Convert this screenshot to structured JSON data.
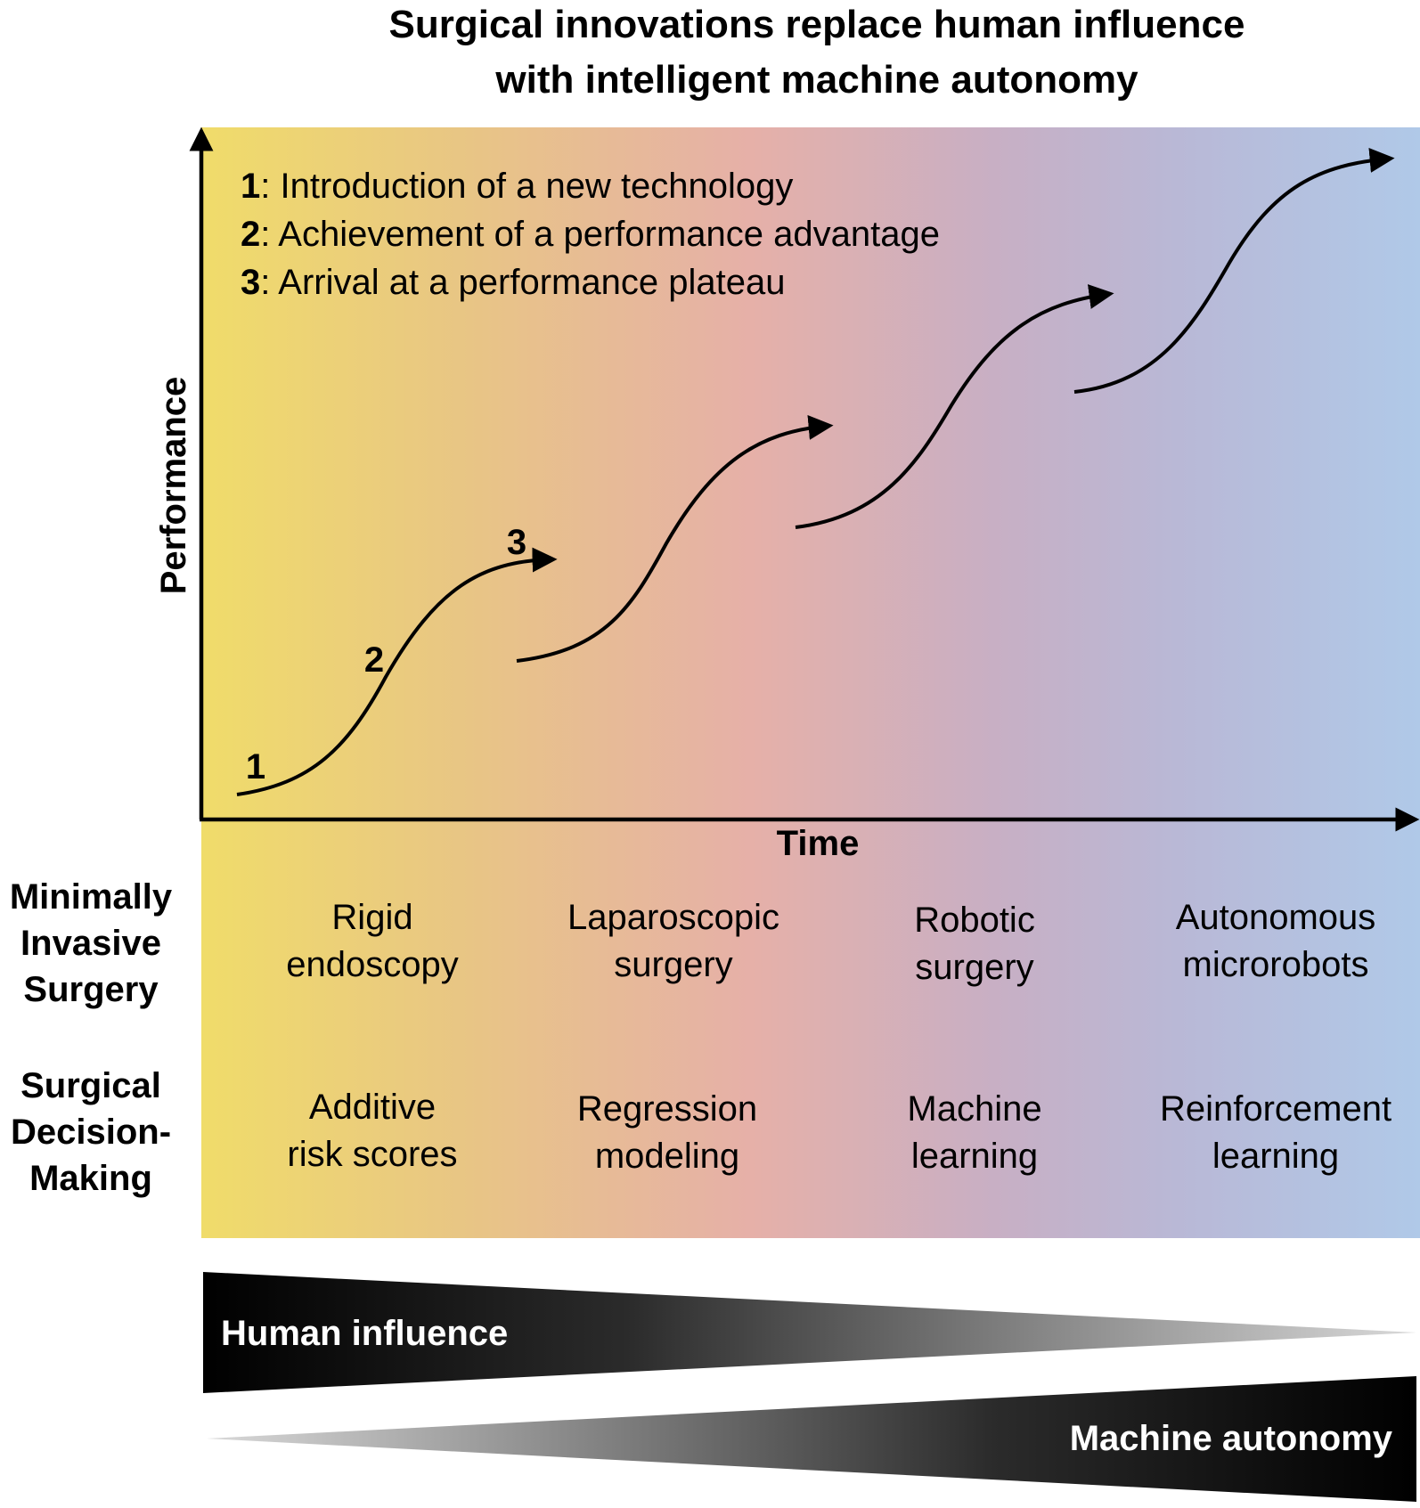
{
  "title": {
    "line1": "Surgical innovations replace human influence",
    "line2": "with intelligent machine autonomy"
  },
  "axes": {
    "y_label": "Performance",
    "x_label": "Time"
  },
  "legend": [
    {
      "num": "1",
      "text": ": Introduction of a new technology"
    },
    {
      "num": "2",
      "text": ": Achievement of a performance advantage"
    },
    {
      "num": "3",
      "text": ": Arrival at a performance plateau"
    }
  ],
  "curve_markers": [
    "1",
    "2",
    "3"
  ],
  "rows": [
    {
      "label": [
        "Minimally",
        "Invasive",
        "Surgery"
      ],
      "cells": [
        [
          "Rigid",
          "endoscopy"
        ],
        [
          "Laparoscopic",
          "surgery"
        ],
        [
          "Robotic",
          "surgery"
        ],
        [
          "Autonomous",
          "microrobots"
        ]
      ]
    },
    {
      "label": [
        "Surgical",
        "Decision-",
        "Making"
      ],
      "cells": [
        [
          "Additive",
          "risk scores"
        ],
        [
          "Regression",
          "modeling"
        ],
        [
          "Machine",
          "learning"
        ],
        [
          "Reinforcement",
          "learning"
        ]
      ]
    }
  ],
  "wedges": {
    "human": "Human influence",
    "machine": "Machine autonomy"
  },
  "colors": {
    "gradient": [
      "#f0dc6a",
      "#e8c585",
      "#e6b0a8",
      "#c8afc4",
      "#b9b8d6",
      "#b0c9e8"
    ],
    "ink": "#000000"
  }
}
